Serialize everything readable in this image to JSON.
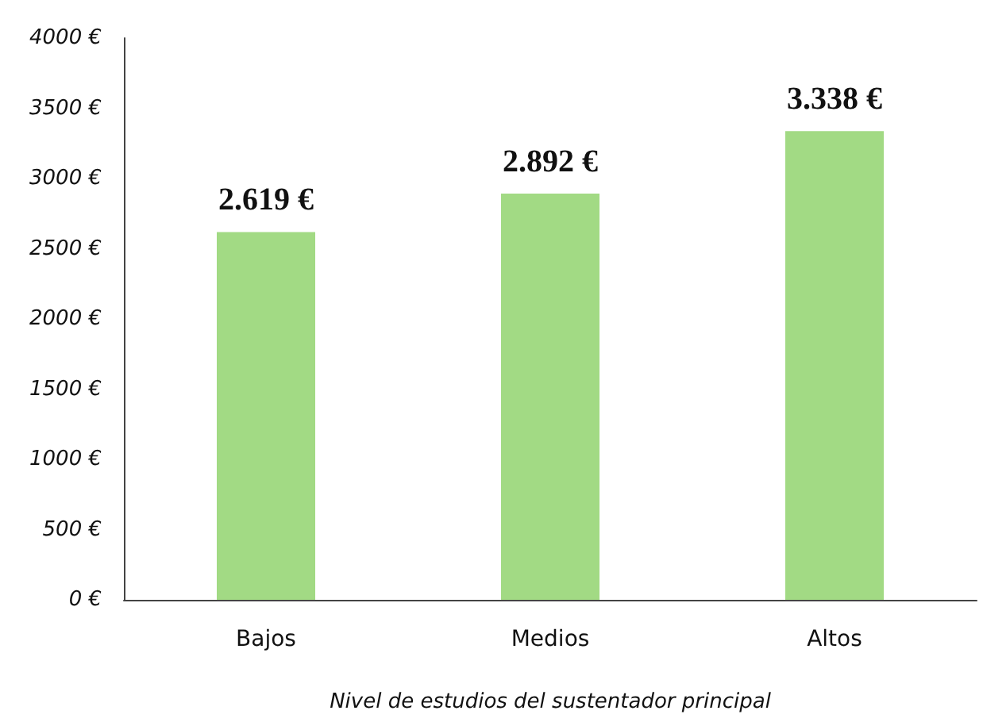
{
  "chart_data": {
    "type": "bar",
    "xlabel": "Nivel de estudios del sustentador principal",
    "categories": [
      "Bajos",
      "Medios",
      "Altos"
    ],
    "values": [
      2619,
      2892,
      3338
    ],
    "color": "#a2da84",
    "value_labels": [
      "2.619 €",
      "2.892 €",
      "3.338 €"
    ],
    "ylim": [
      0,
      4000
    ],
    "yticks": [
      {
        "value": 0,
        "label": "0 €"
      },
      {
        "value": 500,
        "label": "500 €"
      },
      {
        "value": 1000,
        "label": "1000 €"
      },
      {
        "value": 1500,
        "label": "1500 €"
      },
      {
        "value": 2000,
        "label": "2000 €"
      },
      {
        "value": 2500,
        "label": "2500 €"
      },
      {
        "value": 3000,
        "label": "3000 €"
      },
      {
        "value": 3500,
        "label": "3500 €"
      },
      {
        "value": 4000,
        "label": "4000 €"
      }
    ],
    "grid": false
  }
}
